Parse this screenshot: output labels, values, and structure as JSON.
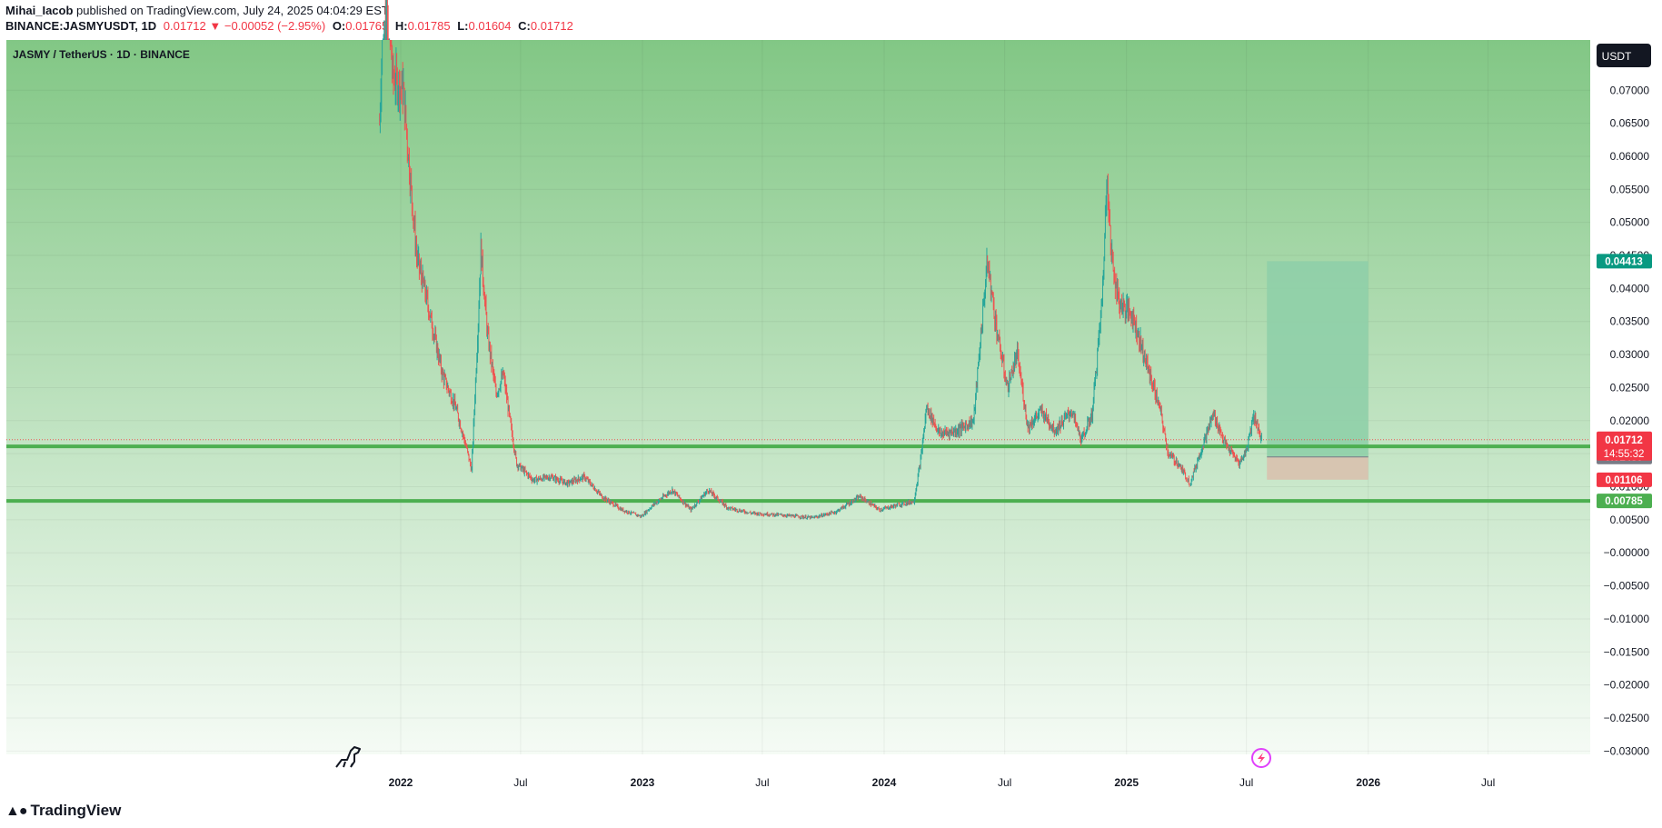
{
  "header": {
    "author": "Mihai_Iacob",
    "published_text": "published on TradingView.com, July 24, 2025 04:04:29 EST",
    "symbol": "BINANCE:JASMYUSDT, 1D",
    "last": "0.01712",
    "change": "▼ −0.00052 (−2.95%)",
    "open_label": "O:",
    "open": "0.01765",
    "high_label": "H:",
    "high": "0.01785",
    "low_label": "L:",
    "low": "0.01604",
    "close_label": "C:",
    "close": "0.01712"
  },
  "pane_title": "JASMY / TetherUS · 1D · BINANCE",
  "currency_button": "USDT",
  "footer": {
    "logo_icon": "tradingview-logo-icon",
    "logo_text": "TradingView"
  },
  "icons": {
    "left": "dinosaur-icon",
    "right": "lightning-circle-icon"
  },
  "colors": {
    "up": "#26a69a",
    "down": "#ef5350",
    "support_line": "#4caf50",
    "bg_top": "#82c785",
    "bg_bottom": "#f5fbf5",
    "target_zone": "#8fcfa9",
    "stop_zone": "#d8c1ae",
    "price_label_red": "#f23645",
    "price_label_green": "#4caf50",
    "price_label_gray": "#787b86",
    "price_label_teal": "#089981"
  },
  "chart_data": {
    "type": "candlestick",
    "title": "JASMY / TetherUS · 1D · BINANCE",
    "y_ticks": [
      "0.07000",
      "0.06500",
      "0.06000",
      "0.05500",
      "0.05000",
      "0.04500",
      "0.04000",
      "0.03500",
      "0.03000",
      "0.02500",
      "0.02000",
      "0.01500",
      "0.01000",
      "0.00500",
      "−0.00000",
      "−0.00500",
      "−0.01000",
      "−0.01500",
      "−0.02000",
      "−0.02500",
      "−0.03000"
    ],
    "ylim": [
      -0.0305,
      0.0776
    ],
    "x_ticks": [
      {
        "label": "2022",
        "date": "2022-01-01"
      },
      {
        "label": "Jul",
        "date": "2022-07-01"
      },
      {
        "label": "2023",
        "date": "2023-01-01"
      },
      {
        "label": "Jul",
        "date": "2023-07-01"
      },
      {
        "label": "2024",
        "date": "2024-01-01"
      },
      {
        "label": "Jul",
        "date": "2024-07-01"
      },
      {
        "label": "2025",
        "date": "2025-01-01"
      },
      {
        "label": "Jul",
        "date": "2025-07-01"
      },
      {
        "label": "2026",
        "date": "2026-01-01"
      },
      {
        "label": "Jul",
        "date": "2026-07-01"
      }
    ],
    "price_path": [
      [
        "2021-11-30",
        0.065
      ],
      [
        "2021-12-08",
        0.09
      ],
      [
        "2021-12-20",
        0.072
      ],
      [
        "2022-01-05",
        0.07
      ],
      [
        "2022-01-15",
        0.057
      ],
      [
        "2022-01-25",
        0.045
      ],
      [
        "2022-02-10",
        0.038
      ],
      [
        "2022-03-05",
        0.027
      ],
      [
        "2022-03-25",
        0.022
      ],
      [
        "2022-04-10",
        0.016
      ],
      [
        "2022-04-18",
        0.0125
      ],
      [
        "2022-04-28",
        0.035
      ],
      [
        "2022-05-02",
        0.046
      ],
      [
        "2022-05-12",
        0.033
      ],
      [
        "2022-05-25",
        0.024
      ],
      [
        "2022-06-05",
        0.027
      ],
      [
        "2022-06-15",
        0.02
      ],
      [
        "2022-06-25",
        0.0135
      ],
      [
        "2022-07-20",
        0.011
      ],
      [
        "2022-08-15",
        0.0115
      ],
      [
        "2022-09-10",
        0.0105
      ],
      [
        "2022-10-05",
        0.0115
      ],
      [
        "2022-11-01",
        0.0085
      ],
      [
        "2022-12-01",
        0.0065
      ],
      [
        "2022-12-30",
        0.0055
      ],
      [
        "2023-01-20",
        0.0075
      ],
      [
        "2023-02-15",
        0.0095
      ],
      [
        "2023-03-15",
        0.0065
      ],
      [
        "2023-04-10",
        0.0095
      ],
      [
        "2023-05-10",
        0.0068
      ],
      [
        "2023-06-15",
        0.006
      ],
      [
        "2023-08-01",
        0.0057
      ],
      [
        "2023-09-15",
        0.0053
      ],
      [
        "2023-10-20",
        0.0062
      ],
      [
        "2023-11-25",
        0.0085
      ],
      [
        "2023-12-25",
        0.0065
      ],
      [
        "2024-01-20",
        0.0072
      ],
      [
        "2024-02-15",
        0.0078
      ],
      [
        "2024-02-25",
        0.014
      ],
      [
        "2024-03-05",
        0.022
      ],
      [
        "2024-03-25",
        0.018
      ],
      [
        "2024-04-20",
        0.0185
      ],
      [
        "2024-05-15",
        0.02
      ],
      [
        "2024-06-01",
        0.04
      ],
      [
        "2024-06-05",
        0.044
      ],
      [
        "2024-06-20",
        0.033
      ],
      [
        "2024-07-05",
        0.025
      ],
      [
        "2024-07-20",
        0.03
      ],
      [
        "2024-08-05",
        0.019
      ],
      [
        "2024-08-25",
        0.0215
      ],
      [
        "2024-09-15",
        0.0185
      ],
      [
        "2024-10-10",
        0.0215
      ],
      [
        "2024-10-25",
        0.017
      ],
      [
        "2024-11-10",
        0.021
      ],
      [
        "2024-11-25",
        0.038
      ],
      [
        "2024-12-03",
        0.058
      ],
      [
        "2024-12-08",
        0.046
      ],
      [
        "2024-12-20",
        0.038
      ],
      [
        "2025-01-10",
        0.036
      ],
      [
        "2025-01-30",
        0.029
      ],
      [
        "2025-02-20",
        0.022
      ],
      [
        "2025-03-05",
        0.015
      ],
      [
        "2025-03-20",
        0.0135
      ],
      [
        "2025-04-07",
        0.0105
      ],
      [
        "2025-04-25",
        0.016
      ],
      [
        "2025-05-12",
        0.021
      ],
      [
        "2025-05-30",
        0.0165
      ],
      [
        "2025-06-20",
        0.0135
      ],
      [
        "2025-07-01",
        0.0155
      ],
      [
        "2025-07-12",
        0.021
      ],
      [
        "2025-07-24",
        0.01712
      ]
    ],
    "horizontal_lines": [
      0.0161,
      0.00785
    ],
    "current_price": {
      "value": 0.01712,
      "label": "0.01712",
      "countdown": "14:55:32"
    },
    "price_labels": [
      {
        "value": 0.04413,
        "label": "0.04413",
        "color": "teal"
      },
      {
        "value": 0.0161,
        "label": "0.01610",
        "color": "green"
      },
      {
        "value": 0.0145,
        "label": "0.01450",
        "color": "gray"
      },
      {
        "value": 0.01106,
        "label": "0.01106",
        "color": "red"
      },
      {
        "value": 0.00785,
        "label": "0.00785",
        "color": "green"
      }
    ],
    "position": {
      "type": "long",
      "start": "2025-08-01",
      "end": "2026-01-01",
      "target": 0.04413,
      "entry": 0.0145,
      "stop": 0.01106
    }
  }
}
